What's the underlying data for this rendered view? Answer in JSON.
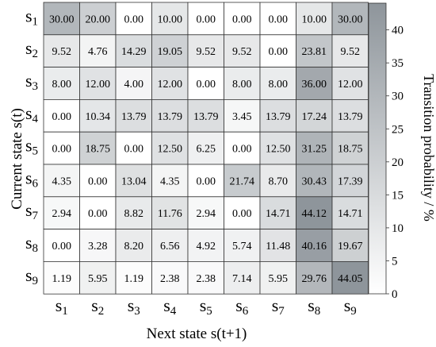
{
  "chart_data": {
    "type": "heatmap",
    "xlabel": "Next state s(t+1)",
    "ylabel": "Current state s(t)",
    "row_labels": [
      "s1",
      "s2",
      "s3",
      "s4",
      "s5",
      "s6",
      "s7",
      "s8",
      "s9"
    ],
    "col_labels": [
      "s1",
      "s2",
      "s3",
      "s4",
      "s5",
      "s6",
      "s7",
      "s8",
      "s9"
    ],
    "values": [
      [
        30.0,
        20.0,
        0.0,
        10.0,
        0.0,
        0.0,
        0.0,
        10.0,
        30.0
      ],
      [
        9.52,
        4.76,
        14.29,
        19.05,
        9.52,
        9.52,
        0.0,
        23.81,
        9.52
      ],
      [
        8.0,
        12.0,
        4.0,
        12.0,
        0.0,
        8.0,
        8.0,
        36.0,
        12.0
      ],
      [
        0.0,
        10.34,
        13.79,
        13.79,
        13.79,
        3.45,
        13.79,
        17.24,
        13.79
      ],
      [
        0.0,
        18.75,
        0.0,
        12.5,
        6.25,
        0.0,
        12.5,
        31.25,
        18.75
      ],
      [
        4.35,
        0.0,
        13.04,
        4.35,
        0.0,
        21.74,
        8.7,
        30.43,
        17.39
      ],
      [
        2.94,
        0.0,
        8.82,
        11.76,
        2.94,
        0.0,
        14.71,
        44.12,
        14.71
      ],
      [
        0.0,
        3.28,
        8.2,
        6.56,
        4.92,
        5.74,
        11.48,
        40.16,
        19.67
      ],
      [
        1.19,
        5.95,
        1.19,
        2.38,
        2.38,
        7.14,
        5.95,
        29.76,
        44.05
      ]
    ],
    "colorbar": {
      "label": "Transition probability / %",
      "range": [
        0,
        44.05
      ],
      "ticks": [
        0,
        5,
        10,
        15,
        20,
        25,
        30,
        35,
        40
      ],
      "color_low": "#ffffff",
      "color_high": "#8e959b"
    }
  }
}
